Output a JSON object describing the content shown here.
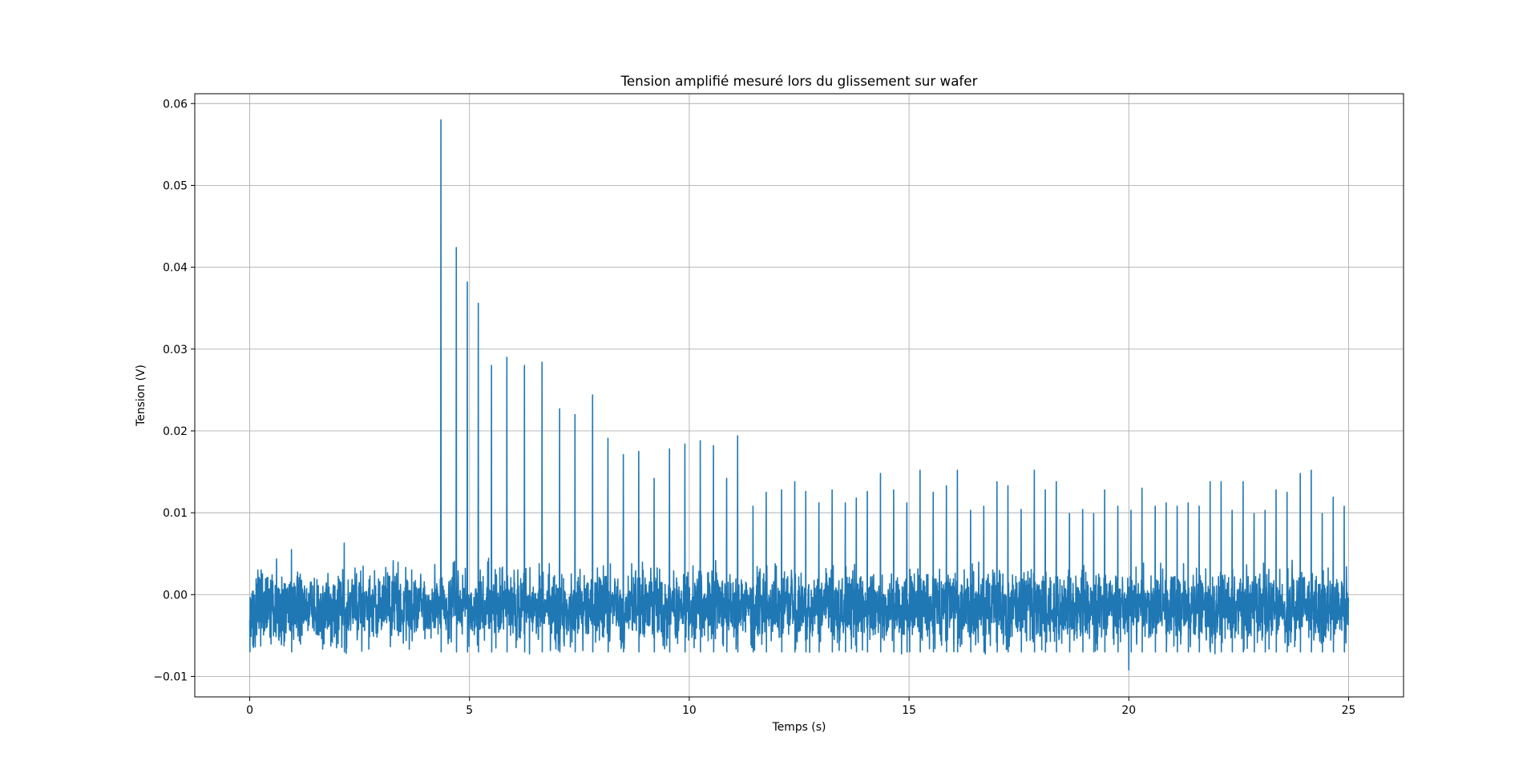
{
  "chart_data": {
    "type": "line",
    "title": "Tension amplifié mesuré lors du glissement sur wafer",
    "xlabel": "Temps (s)",
    "ylabel": "Tension (V)",
    "xlim": [
      -1.25,
      26.25
    ],
    "ylim": [
      -0.0125,
      0.0612
    ],
    "xticks": [
      0,
      5,
      10,
      15,
      20,
      25
    ],
    "xtick_labels": [
      "0",
      "5",
      "10",
      "15",
      "20",
      "25"
    ],
    "yticks": [
      -0.01,
      0.0,
      0.01,
      0.02,
      0.03,
      0.04,
      0.05,
      0.06
    ],
    "ytick_labels": [
      "−0.01",
      "0.00",
      "0.01",
      "0.02",
      "0.03",
      "0.04",
      "0.05",
      "0.06"
    ],
    "grid": true,
    "legend": "none",
    "series": [
      {
        "color": "#1f77b4",
        "x_range": [
          0,
          25
        ],
        "noise": {
          "baseline": -0.002,
          "typical_min": -0.0075,
          "typical_max": 0.0045,
          "min": -0.0092,
          "min_at": 20.0
        },
        "peaks": [
          {
            "x": 0.95,
            "y": 0.0055
          },
          {
            "x": 2.15,
            "y": 0.0063
          },
          {
            "x": 4.35,
            "y": 0.058
          },
          {
            "x": 4.7,
            "y": 0.0424
          },
          {
            "x": 4.95,
            "y": 0.0382
          },
          {
            "x": 5.2,
            "y": 0.0356
          },
          {
            "x": 5.5,
            "y": 0.028
          },
          {
            "x": 5.85,
            "y": 0.029
          },
          {
            "x": 6.25,
            "y": 0.028
          },
          {
            "x": 6.65,
            "y": 0.0284
          },
          {
            "x": 7.05,
            "y": 0.0227
          },
          {
            "x": 7.4,
            "y": 0.022
          },
          {
            "x": 7.8,
            "y": 0.0244
          },
          {
            "x": 8.15,
            "y": 0.0191
          },
          {
            "x": 8.5,
            "y": 0.0171
          },
          {
            "x": 8.85,
            "y": 0.0175
          },
          {
            "x": 9.2,
            "y": 0.0142
          },
          {
            "x": 9.55,
            "y": 0.0178
          },
          {
            "x": 9.9,
            "y": 0.0184
          },
          {
            "x": 10.25,
            "y": 0.0188
          },
          {
            "x": 10.55,
            "y": 0.0182
          },
          {
            "x": 10.85,
            "y": 0.0142
          },
          {
            "x": 11.1,
            "y": 0.0194
          },
          {
            "x": 11.45,
            "y": 0.0108
          },
          {
            "x": 11.75,
            "y": 0.0125
          },
          {
            "x": 12.1,
            "y": 0.0128
          },
          {
            "x": 12.4,
            "y": 0.0138
          },
          {
            "x": 12.65,
            "y": 0.0126
          },
          {
            "x": 12.95,
            "y": 0.0112
          },
          {
            "x": 13.25,
            "y": 0.0128
          },
          {
            "x": 13.55,
            "y": 0.0112
          },
          {
            "x": 13.8,
            "y": 0.0118
          },
          {
            "x": 14.05,
            "y": 0.0126
          },
          {
            "x": 14.35,
            "y": 0.0148
          },
          {
            "x": 14.65,
            "y": 0.0128
          },
          {
            "x": 14.95,
            "y": 0.0112
          },
          {
            "x": 15.25,
            "y": 0.0152
          },
          {
            "x": 15.55,
            "y": 0.0125
          },
          {
            "x": 15.85,
            "y": 0.0133
          },
          {
            "x": 16.1,
            "y": 0.0152
          },
          {
            "x": 16.4,
            "y": 0.0103
          },
          {
            "x": 16.7,
            "y": 0.0108
          },
          {
            "x": 17.0,
            "y": 0.0138
          },
          {
            "x": 17.25,
            "y": 0.0133
          },
          {
            "x": 17.55,
            "y": 0.0104
          },
          {
            "x": 17.85,
            "y": 0.0152
          },
          {
            "x": 18.1,
            "y": 0.0128
          },
          {
            "x": 18.35,
            "y": 0.0138
          },
          {
            "x": 18.65,
            "y": 0.0099
          },
          {
            "x": 18.95,
            "y": 0.0104
          },
          {
            "x": 19.2,
            "y": 0.0099
          },
          {
            "x": 19.45,
            "y": 0.0128
          },
          {
            "x": 19.75,
            "y": 0.0108
          },
          {
            "x": 20.05,
            "y": 0.0103
          },
          {
            "x": 20.3,
            "y": 0.013
          },
          {
            "x": 20.6,
            "y": 0.0108
          },
          {
            "x": 20.85,
            "y": 0.0112
          },
          {
            "x": 21.1,
            "y": 0.0108
          },
          {
            "x": 21.35,
            "y": 0.0112
          },
          {
            "x": 21.6,
            "y": 0.0108
          },
          {
            "x": 21.85,
            "y": 0.0138
          },
          {
            "x": 22.1,
            "y": 0.0138
          },
          {
            "x": 22.35,
            "y": 0.0103
          },
          {
            "x": 22.6,
            "y": 0.0138
          },
          {
            "x": 22.85,
            "y": 0.0099
          },
          {
            "x": 23.1,
            "y": 0.0103
          },
          {
            "x": 23.35,
            "y": 0.0128
          },
          {
            "x": 23.6,
            "y": 0.0125
          },
          {
            "x": 23.9,
            "y": 0.0148
          },
          {
            "x": 24.15,
            "y": 0.0152
          },
          {
            "x": 24.4,
            "y": 0.0099
          },
          {
            "x": 24.65,
            "y": 0.0119
          },
          {
            "x": 24.9,
            "y": 0.0108
          }
        ]
      }
    ]
  }
}
